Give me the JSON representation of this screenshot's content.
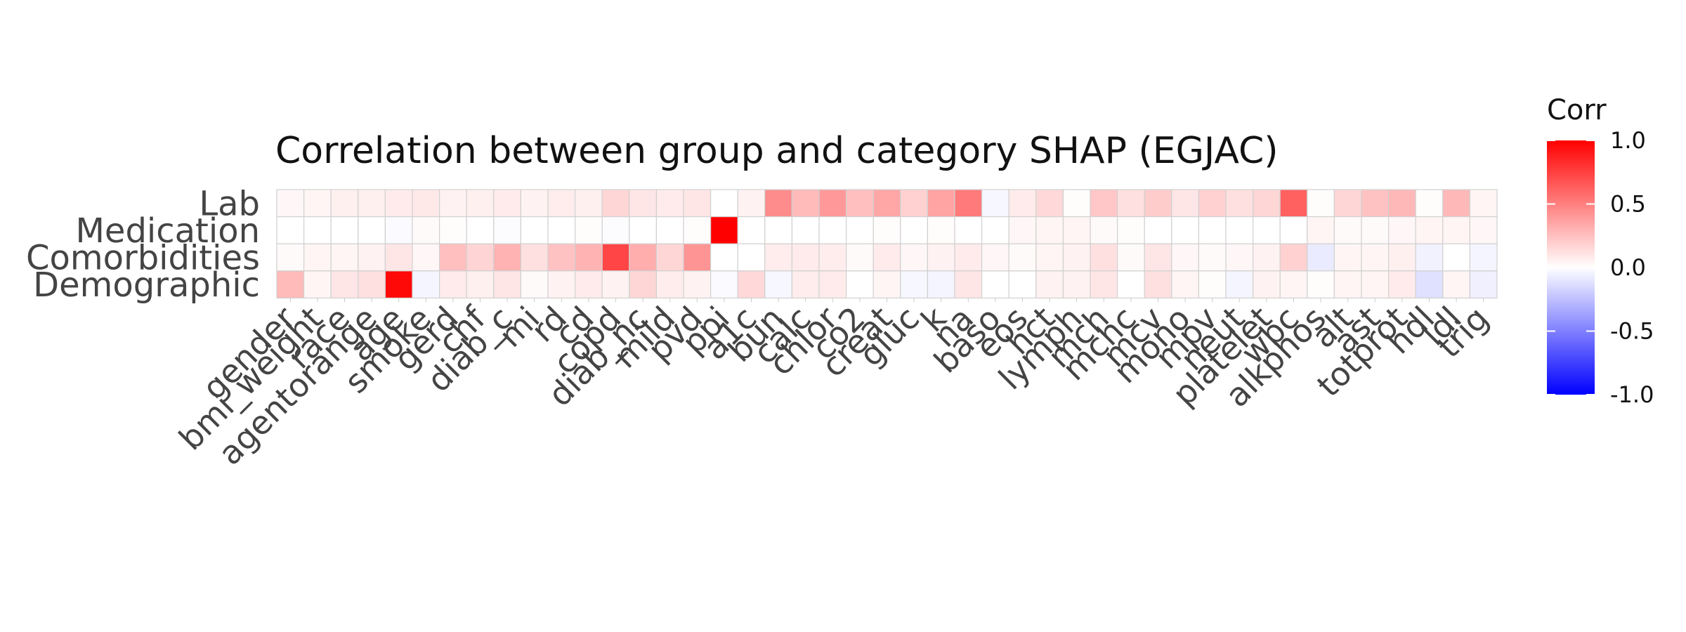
{
  "chart_data": {
    "type": "heatmap",
    "title": "Correlation between group and category SHAP (EGJAC)",
    "x_categories": [
      "gender",
      "bmi_weight",
      "race",
      "agentorange",
      "age",
      "smoke",
      "gerd",
      "chf",
      "diab_c",
      "mi",
      "rd",
      "cd",
      "copd",
      "diab_nc",
      "mild",
      "pvd",
      "ppi",
      "a1c",
      "bun",
      "calc",
      "chlor",
      "co2",
      "creat",
      "gluc",
      "k",
      "na",
      "baso",
      "eos",
      "hct",
      "lymph",
      "mch",
      "mchc",
      "mcv",
      "mono",
      "mpv",
      "neut",
      "platelet",
      "wbc",
      "alkphos",
      "alt",
      "ast",
      "totprot",
      "hdl",
      "ldl",
      "trig"
    ],
    "y_categories": [
      "Lab",
      "Medication",
      "Comorbidities",
      "Demographic"
    ],
    "values": [
      [
        0.03,
        0.04,
        0.06,
        0.06,
        0.08,
        0.09,
        0.05,
        0.06,
        0.08,
        0.05,
        0.07,
        0.06,
        0.16,
        0.1,
        0.08,
        0.1,
        0.0,
        0.05,
        0.45,
        0.27,
        0.4,
        0.25,
        0.35,
        0.18,
        0.36,
        0.52,
        -0.03,
        0.08,
        0.15,
        0.01,
        0.22,
        0.12,
        0.2,
        0.1,
        0.18,
        0.12,
        0.16,
        0.62,
        0.01,
        0.16,
        0.24,
        0.28,
        0.01,
        0.28,
        0.04
      ],
      [
        0.0,
        0.0,
        0.0,
        0.0,
        -0.02,
        0.02,
        0.01,
        0.0,
        -0.01,
        0.0,
        0.0,
        0.01,
        -0.01,
        0.0,
        0.0,
        0.01,
        1.0,
        0.0,
        0.0,
        0.0,
        0.0,
        0.0,
        0.01,
        0.0,
        0.01,
        0.0,
        0.0,
        0.03,
        0.04,
        0.04,
        0.02,
        0.01,
        0.0,
        0.0,
        0.0,
        0.0,
        0.0,
        0.0,
        0.04,
        0.02,
        0.02,
        0.03,
        0.04,
        0.04,
        0.03
      ],
      [
        0.02,
        0.04,
        0.04,
        0.05,
        0.1,
        0.03,
        0.25,
        0.17,
        0.3,
        0.12,
        0.24,
        0.3,
        0.73,
        0.32,
        0.16,
        0.42,
        0.0,
        0.0,
        0.07,
        0.08,
        0.07,
        0.02,
        0.08,
        0.03,
        0.05,
        0.08,
        0.03,
        0.02,
        0.04,
        0.05,
        0.12,
        0.02,
        0.1,
        0.03,
        0.02,
        0.03,
        0.05,
        0.18,
        -0.08,
        0.04,
        0.04,
        0.06,
        -0.05,
        0.0,
        -0.04
      ],
      [
        0.27,
        0.04,
        0.1,
        0.12,
        0.97,
        -0.04,
        0.08,
        0.06,
        0.1,
        0.02,
        0.05,
        0.08,
        0.05,
        0.16,
        0.07,
        0.05,
        -0.02,
        0.15,
        -0.03,
        0.07,
        0.08,
        0.0,
        0.04,
        -0.03,
        -0.04,
        0.1,
        0.0,
        0.0,
        0.05,
        0.05,
        0.1,
        0.0,
        0.12,
        0.04,
        0.01,
        -0.04,
        0.05,
        0.04,
        0.01,
        0.04,
        0.04,
        0.08,
        -0.12,
        0.04,
        -0.06
      ]
    ],
    "colorbar": {
      "title": "Corr",
      "ticks": [
        "1.0",
        "0.5",
        "0.0",
        "-0.5",
        "-1.0"
      ],
      "limits": [
        -1,
        1
      ],
      "low_color": "#0000ff",
      "mid_color": "#ffffff",
      "high_color": "#ff0000",
      "position": "right"
    }
  }
}
